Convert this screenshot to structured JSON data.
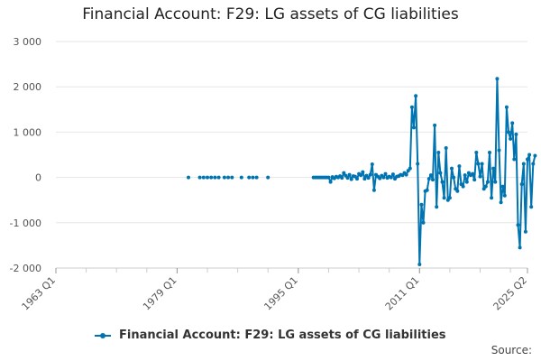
{
  "title": "Financial Account: F29: LG assets of CG liabilities",
  "source_label": "Source:",
  "colors": {
    "series": "#0073b1",
    "grid": "#e6e6e6",
    "axis": "#cccccc"
  },
  "chart_data": {
    "type": "line",
    "title": "Financial Account: F29: LG assets of CG liabilities",
    "xlabel": "",
    "ylabel": "",
    "y_ticks": [
      3000,
      2000,
      1000,
      0,
      -1000,
      -2000
    ],
    "y_tick_labels": [
      "3 000",
      "2 000",
      "1 000",
      "0",
      "-1 000",
      "-2 000"
    ],
    "ylim": [
      -2000,
      3000
    ],
    "x_ticks": [
      1963,
      1979,
      1995,
      2011,
      2025.25
    ],
    "x_tick_labels": [
      "1963 Q1",
      "1979 Q1",
      "1995 Q1",
      "2011 Q1",
      "2025 Q2"
    ],
    "xlim": [
      1963,
      2025.25
    ],
    "grid": true,
    "legend": "bottom",
    "series": [
      {
        "name": "Financial Account: F29: LG assets of CG liabilities",
        "segments": [
          [
            [
              1980.5,
              0
            ]
          ],
          [
            [
              1982.0,
              0
            ]
          ],
          [
            [
              1982.5,
              0
            ]
          ],
          [
            [
              1983.0,
              0
            ]
          ],
          [
            [
              1983.5,
              0
            ]
          ],
          [
            [
              1984.0,
              0
            ]
          ],
          [
            [
              1984.5,
              0
            ]
          ],
          [
            [
              1985.25,
              0
            ]
          ],
          [
            [
              1985.75,
              0
            ]
          ],
          [
            [
              1986.25,
              0
            ]
          ],
          [
            [
              1987.5,
              0
            ]
          ],
          [
            [
              1988.5,
              0
            ]
          ],
          [
            [
              1989.0,
              0
            ]
          ],
          [
            [
              1989.5,
              0
            ]
          ],
          [
            [
              1991.0,
              0
            ]
          ],
          [
            [
              1997.0,
              0
            ],
            [
              1997.25,
              0
            ],
            [
              1997.5,
              0
            ],
            [
              1997.75,
              0
            ],
            [
              1998.0,
              0
            ],
            [
              1998.25,
              0
            ],
            [
              1998.5,
              0
            ],
            [
              1998.75,
              0
            ],
            [
              1999.0,
              0
            ],
            [
              1999.25,
              -100
            ],
            [
              1999.5,
              10
            ],
            [
              1999.75,
              -20
            ],
            [
              2000.0,
              15
            ],
            [
              2000.25,
              0
            ],
            [
              2000.5,
              30
            ],
            [
              2000.75,
              -10
            ],
            [
              2001.0,
              100
            ],
            [
              2001.25,
              40
            ],
            [
              2001.5,
              -10
            ],
            [
              2001.75,
              60
            ],
            [
              2002.0,
              -40
            ],
            [
              2002.25,
              30
            ],
            [
              2002.5,
              20
            ],
            [
              2002.75,
              -30
            ],
            [
              2003.0,
              80
            ],
            [
              2003.25,
              50
            ],
            [
              2003.5,
              120
            ],
            [
              2003.75,
              -30
            ],
            [
              2004.0,
              40
            ],
            [
              2004.25,
              -10
            ],
            [
              2004.5,
              60
            ],
            [
              2004.75,
              290
            ],
            [
              2005.0,
              -280
            ],
            [
              2005.25,
              60
            ],
            [
              2005.5,
              20
            ],
            [
              2005.75,
              -20
            ],
            [
              2006.0,
              40
            ],
            [
              2006.25,
              0
            ],
            [
              2006.5,
              80
            ],
            [
              2006.75,
              -10
            ],
            [
              2007.0,
              20
            ],
            [
              2007.25,
              0
            ],
            [
              2007.5,
              70
            ],
            [
              2007.75,
              -30
            ],
            [
              2008.0,
              20
            ],
            [
              2008.25,
              30
            ],
            [
              2008.5,
              60
            ],
            [
              2008.75,
              50
            ],
            [
              2009.0,
              100
            ],
            [
              2009.25,
              60
            ],
            [
              2009.5,
              150
            ],
            [
              2009.75,
              200
            ],
            [
              2010.0,
              1550
            ],
            [
              2010.25,
              1100
            ],
            [
              2010.5,
              1800
            ],
            [
              2010.75,
              300
            ],
            [
              2011.0,
              -1920
            ],
            [
              2011.25,
              -600
            ],
            [
              2011.5,
              -1000
            ],
            [
              2011.75,
              -300
            ],
            [
              2012.0,
              -280
            ],
            [
              2012.25,
              -30
            ],
            [
              2012.5,
              50
            ],
            [
              2012.75,
              -50
            ],
            [
              2013.0,
              1150
            ],
            [
              2013.25,
              -650
            ],
            [
              2013.5,
              550
            ],
            [
              2013.75,
              100
            ],
            [
              2014.0,
              -100
            ],
            [
              2014.25,
              -450
            ],
            [
              2014.5,
              650
            ],
            [
              2014.75,
              -500
            ],
            [
              2015.0,
              -450
            ],
            [
              2015.25,
              200
            ],
            [
              2015.5,
              0
            ],
            [
              2015.75,
              -250
            ],
            [
              2016.0,
              -300
            ],
            [
              2016.25,
              250
            ],
            [
              2016.5,
              -150
            ],
            [
              2016.75,
              -200
            ],
            [
              2017.0,
              50
            ],
            [
              2017.25,
              -100
            ],
            [
              2017.5,
              100
            ],
            [
              2017.75,
              50
            ],
            [
              2018.0,
              80
            ],
            [
              2018.25,
              -50
            ],
            [
              2018.5,
              550
            ],
            [
              2018.75,
              300
            ],
            [
              2019.0,
              20
            ],
            [
              2019.25,
              300
            ],
            [
              2019.5,
              -250
            ],
            [
              2019.75,
              -200
            ],
            [
              2020.0,
              -100
            ],
            [
              2020.25,
              550
            ],
            [
              2020.5,
              -450
            ],
            [
              2020.75,
              200
            ],
            [
              2021.0,
              -100
            ],
            [
              2021.25,
              2180
            ],
            [
              2021.5,
              600
            ],
            [
              2021.75,
              -550
            ],
            [
              2022.0,
              -200
            ],
            [
              2022.25,
              -400
            ],
            [
              2022.5,
              1550
            ],
            [
              2022.75,
              1000
            ],
            [
              2023.0,
              850
            ],
            [
              2023.25,
              1200
            ],
            [
              2023.5,
              400
            ],
            [
              2023.75,
              950
            ],
            [
              2024.0,
              -1050
            ],
            [
              2024.25,
              -1550
            ],
            [
              2024.5,
              -150
            ],
            [
              2024.75,
              300
            ],
            [
              2025.0,
              -1200
            ],
            [
              2025.25,
              400
            ],
            [
              2025.5,
              500
            ],
            [
              2025.75,
              -650
            ],
            [
              2026.0,
              300
            ],
            [
              2026.25,
              480
            ]
          ]
        ]
      }
    ]
  }
}
